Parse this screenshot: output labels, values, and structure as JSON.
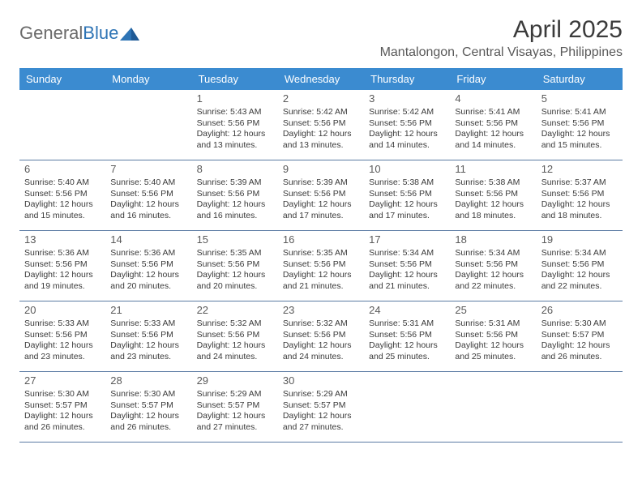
{
  "brand": {
    "part1": "General",
    "part2": "Blue"
  },
  "title": "April 2025",
  "location": "Mantalongon, Central Visayas, Philippines",
  "colors": {
    "header_bg": "#3b8bd0",
    "header_fg": "#ffffff",
    "rule": "#5b7ba3",
    "brand_grey": "#6a6a6a",
    "brand_blue": "#2e74b5",
    "text": "#3a3a3a",
    "bg": "#ffffff"
  },
  "day_names": [
    "Sunday",
    "Monday",
    "Tuesday",
    "Wednesday",
    "Thursday",
    "Friday",
    "Saturday"
  ],
  "weeks": [
    [
      null,
      null,
      {
        "n": "1",
        "sr": "Sunrise: 5:43 AM",
        "ss": "Sunset: 5:56 PM",
        "dl": "Daylight: 12 hours and 13 minutes."
      },
      {
        "n": "2",
        "sr": "Sunrise: 5:42 AM",
        "ss": "Sunset: 5:56 PM",
        "dl": "Daylight: 12 hours and 13 minutes."
      },
      {
        "n": "3",
        "sr": "Sunrise: 5:42 AM",
        "ss": "Sunset: 5:56 PM",
        "dl": "Daylight: 12 hours and 14 minutes."
      },
      {
        "n": "4",
        "sr": "Sunrise: 5:41 AM",
        "ss": "Sunset: 5:56 PM",
        "dl": "Daylight: 12 hours and 14 minutes."
      },
      {
        "n": "5",
        "sr": "Sunrise: 5:41 AM",
        "ss": "Sunset: 5:56 PM",
        "dl": "Daylight: 12 hours and 15 minutes."
      }
    ],
    [
      {
        "n": "6",
        "sr": "Sunrise: 5:40 AM",
        "ss": "Sunset: 5:56 PM",
        "dl": "Daylight: 12 hours and 15 minutes."
      },
      {
        "n": "7",
        "sr": "Sunrise: 5:40 AM",
        "ss": "Sunset: 5:56 PM",
        "dl": "Daylight: 12 hours and 16 minutes."
      },
      {
        "n": "8",
        "sr": "Sunrise: 5:39 AM",
        "ss": "Sunset: 5:56 PM",
        "dl": "Daylight: 12 hours and 16 minutes."
      },
      {
        "n": "9",
        "sr": "Sunrise: 5:39 AM",
        "ss": "Sunset: 5:56 PM",
        "dl": "Daylight: 12 hours and 17 minutes."
      },
      {
        "n": "10",
        "sr": "Sunrise: 5:38 AM",
        "ss": "Sunset: 5:56 PM",
        "dl": "Daylight: 12 hours and 17 minutes."
      },
      {
        "n": "11",
        "sr": "Sunrise: 5:38 AM",
        "ss": "Sunset: 5:56 PM",
        "dl": "Daylight: 12 hours and 18 minutes."
      },
      {
        "n": "12",
        "sr": "Sunrise: 5:37 AM",
        "ss": "Sunset: 5:56 PM",
        "dl": "Daylight: 12 hours and 18 minutes."
      }
    ],
    [
      {
        "n": "13",
        "sr": "Sunrise: 5:36 AM",
        "ss": "Sunset: 5:56 PM",
        "dl": "Daylight: 12 hours and 19 minutes."
      },
      {
        "n": "14",
        "sr": "Sunrise: 5:36 AM",
        "ss": "Sunset: 5:56 PM",
        "dl": "Daylight: 12 hours and 20 minutes."
      },
      {
        "n": "15",
        "sr": "Sunrise: 5:35 AM",
        "ss": "Sunset: 5:56 PM",
        "dl": "Daylight: 12 hours and 20 minutes."
      },
      {
        "n": "16",
        "sr": "Sunrise: 5:35 AM",
        "ss": "Sunset: 5:56 PM",
        "dl": "Daylight: 12 hours and 21 minutes."
      },
      {
        "n": "17",
        "sr": "Sunrise: 5:34 AM",
        "ss": "Sunset: 5:56 PM",
        "dl": "Daylight: 12 hours and 21 minutes."
      },
      {
        "n": "18",
        "sr": "Sunrise: 5:34 AM",
        "ss": "Sunset: 5:56 PM",
        "dl": "Daylight: 12 hours and 22 minutes."
      },
      {
        "n": "19",
        "sr": "Sunrise: 5:34 AM",
        "ss": "Sunset: 5:56 PM",
        "dl": "Daylight: 12 hours and 22 minutes."
      }
    ],
    [
      {
        "n": "20",
        "sr": "Sunrise: 5:33 AM",
        "ss": "Sunset: 5:56 PM",
        "dl": "Daylight: 12 hours and 23 minutes."
      },
      {
        "n": "21",
        "sr": "Sunrise: 5:33 AM",
        "ss": "Sunset: 5:56 PM",
        "dl": "Daylight: 12 hours and 23 minutes."
      },
      {
        "n": "22",
        "sr": "Sunrise: 5:32 AM",
        "ss": "Sunset: 5:56 PM",
        "dl": "Daylight: 12 hours and 24 minutes."
      },
      {
        "n": "23",
        "sr": "Sunrise: 5:32 AM",
        "ss": "Sunset: 5:56 PM",
        "dl": "Daylight: 12 hours and 24 minutes."
      },
      {
        "n": "24",
        "sr": "Sunrise: 5:31 AM",
        "ss": "Sunset: 5:56 PM",
        "dl": "Daylight: 12 hours and 25 minutes."
      },
      {
        "n": "25",
        "sr": "Sunrise: 5:31 AM",
        "ss": "Sunset: 5:56 PM",
        "dl": "Daylight: 12 hours and 25 minutes."
      },
      {
        "n": "26",
        "sr": "Sunrise: 5:30 AM",
        "ss": "Sunset: 5:57 PM",
        "dl": "Daylight: 12 hours and 26 minutes."
      }
    ],
    [
      {
        "n": "27",
        "sr": "Sunrise: 5:30 AM",
        "ss": "Sunset: 5:57 PM",
        "dl": "Daylight: 12 hours and 26 minutes."
      },
      {
        "n": "28",
        "sr": "Sunrise: 5:30 AM",
        "ss": "Sunset: 5:57 PM",
        "dl": "Daylight: 12 hours and 26 minutes."
      },
      {
        "n": "29",
        "sr": "Sunrise: 5:29 AM",
        "ss": "Sunset: 5:57 PM",
        "dl": "Daylight: 12 hours and 27 minutes."
      },
      {
        "n": "30",
        "sr": "Sunrise: 5:29 AM",
        "ss": "Sunset: 5:57 PM",
        "dl": "Daylight: 12 hours and 27 minutes."
      },
      null,
      null,
      null
    ]
  ]
}
